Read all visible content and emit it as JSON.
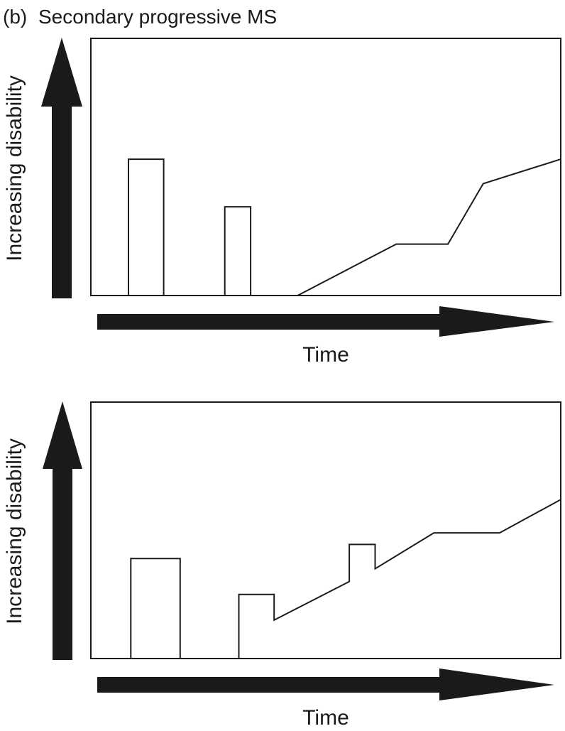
{
  "figure": {
    "panel_letter": "(b)",
    "title": "Secondary progressive MS"
  },
  "colors": {
    "ink": "#1a1a1a",
    "background": "#ffffff"
  },
  "panels": [
    {
      "y_axis_label": "Increasing disability",
      "x_axis_label": "Time",
      "profile": [
        [
          0,
          0
        ],
        [
          8,
          0
        ],
        [
          8,
          53
        ],
        [
          15.5,
          53
        ],
        [
          15.5,
          0
        ],
        [
          28.5,
          0
        ],
        [
          28.5,
          34.5
        ],
        [
          34,
          34.5
        ],
        [
          34,
          0
        ],
        [
          44,
          0
        ],
        [
          65,
          20
        ],
        [
          76,
          20
        ],
        [
          83.5,
          43.5
        ],
        [
          100,
          53
        ]
      ]
    },
    {
      "y_axis_label": "Increasing disability",
      "x_axis_label": "Time",
      "profile": [
        [
          0,
          0
        ],
        [
          8.5,
          0
        ],
        [
          8.5,
          39
        ],
        [
          19,
          39
        ],
        [
          19,
          0
        ],
        [
          31.5,
          0
        ],
        [
          31.5,
          25
        ],
        [
          39,
          25
        ],
        [
          39,
          15
        ],
        [
          55,
          30
        ],
        [
          55,
          44.5
        ],
        [
          60.5,
          44.5
        ],
        [
          60.5,
          35
        ],
        [
          73,
          49
        ],
        [
          87,
          49
        ],
        [
          100,
          62
        ]
      ]
    }
  ]
}
